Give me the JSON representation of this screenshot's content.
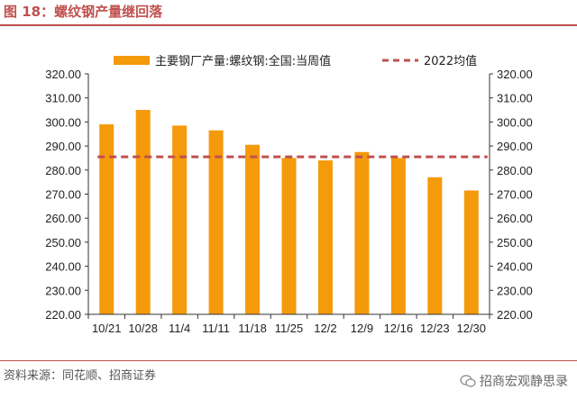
{
  "header": {
    "title": "图 18：螺纹钢产量继回落"
  },
  "footer": {
    "source": "资料来源：同花顺、招商证券",
    "watermark": "招商宏观静思录"
  },
  "colors": {
    "bar": "#f59a0b",
    "avg_line": "#c0504d",
    "accent": "#c0504d"
  },
  "chart_data": {
    "type": "bar",
    "categories": [
      "10/21",
      "10/28",
      "11/4",
      "11/11",
      "11/18",
      "11/25",
      "12/2",
      "12/9",
      "12/16",
      "12/23",
      "12/30"
    ],
    "series": [
      {
        "name": "主要钢厂产量:螺纹钢:全国:当周值",
        "type": "bar",
        "values": [
          299.0,
          305.0,
          298.5,
          296.5,
          290.5,
          285.0,
          284.0,
          287.5,
          285.0,
          277.0,
          271.5
        ]
      },
      {
        "name": "2022均值",
        "type": "line",
        "style": "dashed",
        "values": [
          285.5,
          285.5,
          285.5,
          285.5,
          285.5,
          285.5,
          285.5,
          285.5,
          285.5,
          285.5,
          285.5
        ]
      }
    ],
    "ylim": [
      220,
      320
    ],
    "yticks": [
      "220.00",
      "230.00",
      "240.00",
      "250.00",
      "260.00",
      "270.00",
      "280.00",
      "290.00",
      "300.00",
      "310.00",
      "320.00"
    ],
    "y2ticks": [
      "220.00",
      "230.00",
      "240.00",
      "250.00",
      "260.00",
      "270.00",
      "280.00",
      "290.00",
      "300.00",
      "310.00",
      "320.00"
    ],
    "grid": false,
    "legend": "top"
  }
}
